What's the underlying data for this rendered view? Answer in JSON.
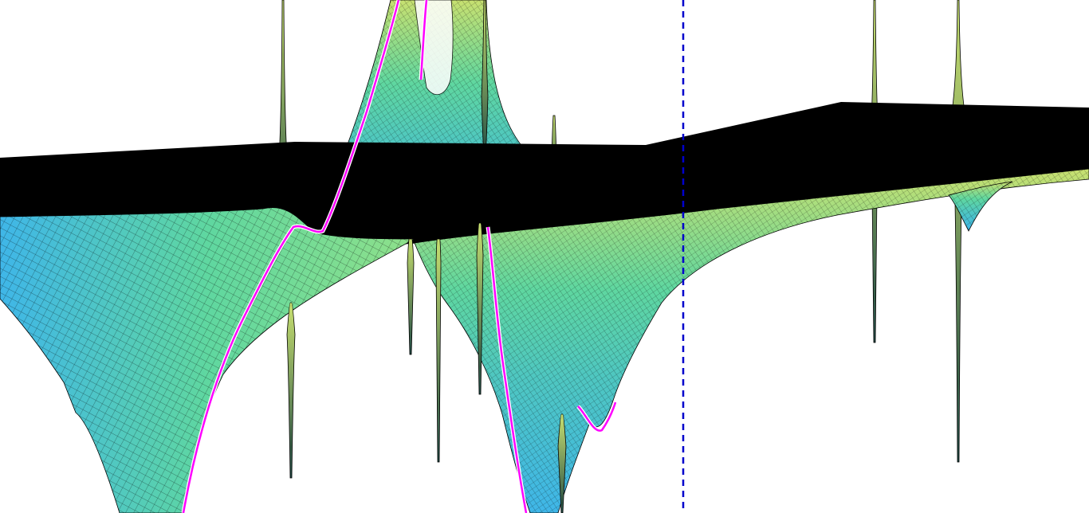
{
  "scene": {
    "background": "#ffffff",
    "plane_color": "#000000",
    "mesh_line_color": "#000000",
    "surface_gradient": [
      "#3fb6e8",
      "#4fc7c0",
      "#5fd7a0",
      "#8fe08a",
      "#c8e070"
    ],
    "surface_shadow": "#1f4a44",
    "curve_color": "#ff00ff",
    "curve_highlight": "#ffffff",
    "marker_line_color": "#0000cc",
    "marker_line_style": "dashed"
  }
}
